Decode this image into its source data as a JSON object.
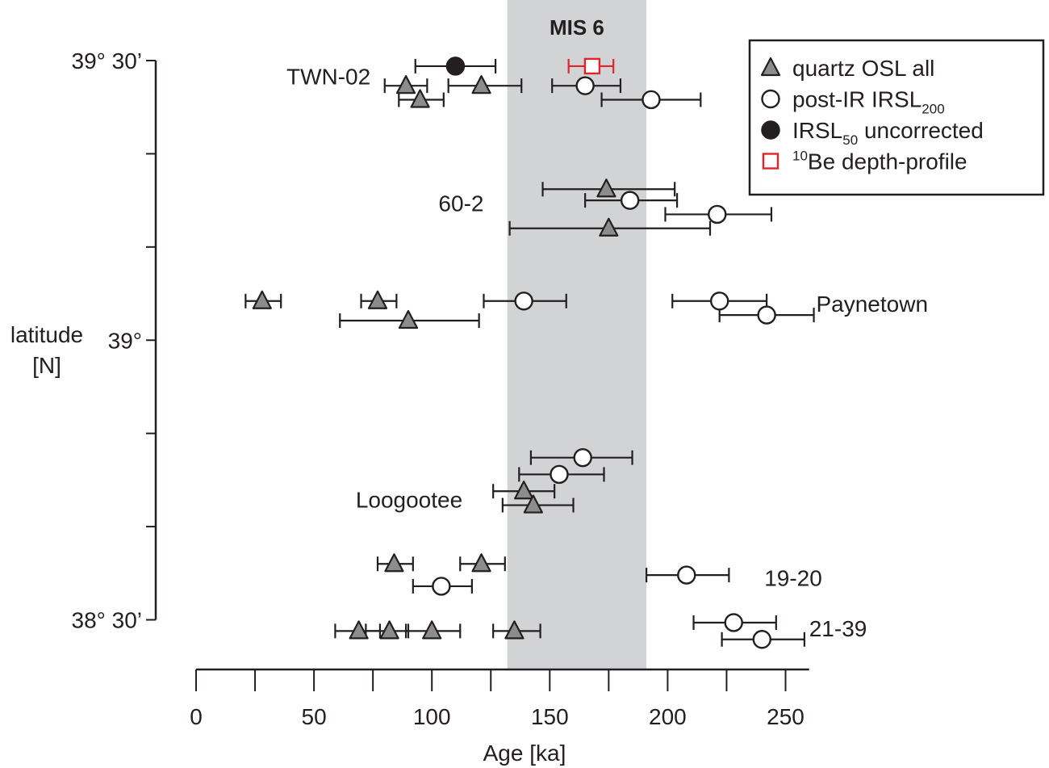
{
  "chart_data": {
    "type": "scatter",
    "title": "",
    "xlabel": "Age [ka]",
    "ylabel": "latitude [N]",
    "xlim": [
      0,
      260
    ],
    "x_ticks": [
      0,
      50,
      100,
      150,
      200,
      250
    ],
    "ylim": [
      38.45,
      39.53
    ],
    "y_ticks": [
      {
        "value": 39.5,
        "label": "39° 30’"
      },
      {
        "value": 39.0,
        "label": "39°"
      },
      {
        "value": 38.5,
        "label": "38° 30’"
      }
    ],
    "shaded_band": {
      "label": "MIS 6",
      "x_start": 132,
      "x_end": 191
    },
    "legend": {
      "position": "top-right",
      "entries": [
        {
          "series": "quartz_osl",
          "text": "quartz OSL all"
        },
        {
          "series": "postir",
          "text": "post-IR IRSL",
          "sub": "200"
        },
        {
          "series": "irsl50",
          "text": "IRSL",
          "sub": "50",
          "suffix": " uncorrected"
        },
        {
          "series": "be10",
          "sup": "10",
          "text": "Be depth-profile"
        }
      ]
    },
    "site_labels": [
      {
        "text": "TWN-02",
        "x": 74,
        "y": 39.472,
        "anchor": "end"
      },
      {
        "text": "60-2",
        "x": 122,
        "y": 39.245,
        "anchor": "end"
      },
      {
        "text": "Paynetown",
        "x": 263,
        "y": 39.065,
        "anchor": "start"
      },
      {
        "text": "Loogootee",
        "x": 113,
        "y": 38.715,
        "anchor": "end"
      },
      {
        "text": "19-20",
        "x": 241,
        "y": 38.575,
        "anchor": "start"
      },
      {
        "text": "21-39",
        "x": 260,
        "y": 38.485,
        "anchor": "start"
      }
    ],
    "series": [
      {
        "name": "quartz OSL all",
        "marker": "triangle",
        "color": "#8c8c8c",
        "points": [
          {
            "x": 89,
            "y": 39.455,
            "xerr": [
              80,
              98
            ]
          },
          {
            "x": 121,
            "y": 39.455,
            "xerr": [
              107,
              138
            ]
          },
          {
            "x": 95,
            "y": 39.43,
            "xerr": [
              86,
              105
            ]
          },
          {
            "x": 174,
            "y": 39.27,
            "xerr": [
              147,
              203
            ]
          },
          {
            "x": 175,
            "y": 39.2,
            "xerr": [
              133,
              218
            ]
          },
          {
            "x": 28,
            "y": 39.07,
            "xerr": [
              21,
              36
            ]
          },
          {
            "x": 77,
            "y": 39.07,
            "xerr": [
              70,
              85
            ]
          },
          {
            "x": 90,
            "y": 39.035,
            "xerr": [
              61,
              120
            ]
          },
          {
            "x": 139,
            "y": 38.73,
            "xerr": [
              126,
              152
            ]
          },
          {
            "x": 143,
            "y": 38.705,
            "xerr": [
              130,
              160
            ]
          },
          {
            "x": 84,
            "y": 38.6,
            "xerr": [
              77,
              92
            ]
          },
          {
            "x": 121,
            "y": 38.6,
            "xerr": [
              112,
              131
            ]
          },
          {
            "x": 69,
            "y": 38.48,
            "xerr": [
              59,
              78
            ]
          },
          {
            "x": 82,
            "y": 38.48,
            "xerr": [
              72,
              90
            ]
          },
          {
            "x": 100,
            "y": 38.48,
            "xerr": [
              89,
              112
            ]
          },
          {
            "x": 135,
            "y": 38.48,
            "xerr": [
              126,
              146
            ]
          }
        ]
      },
      {
        "name": "post-IR IRSL200",
        "marker": "circle-open",
        "color": "#ffffff",
        "points": [
          {
            "x": 165,
            "y": 39.455,
            "xerr": [
              151,
              180
            ]
          },
          {
            "x": 193,
            "y": 39.43,
            "xerr": [
              172,
              214
            ]
          },
          {
            "x": 184,
            "y": 39.25,
            "xerr": [
              165,
              204
            ]
          },
          {
            "x": 221,
            "y": 39.225,
            "xerr": [
              199,
              244
            ]
          },
          {
            "x": 139,
            "y": 39.07,
            "xerr": [
              122,
              157
            ]
          },
          {
            "x": 222,
            "y": 39.07,
            "xerr": [
              202,
              242
            ]
          },
          {
            "x": 242,
            "y": 39.045,
            "xerr": [
              222,
              262
            ]
          },
          {
            "x": 164,
            "y": 38.79,
            "xerr": [
              142,
              185
            ]
          },
          {
            "x": 154,
            "y": 38.76,
            "xerr": [
              137,
              173
            ]
          },
          {
            "x": 208,
            "y": 38.58,
            "xerr": [
              191,
              226
            ]
          },
          {
            "x": 104,
            "y": 38.56,
            "xerr": [
              92,
              117
            ]
          },
          {
            "x": 228,
            "y": 38.495,
            "xerr": [
              211,
              246
            ]
          },
          {
            "x": 240,
            "y": 38.465,
            "xerr": [
              223,
              258
            ]
          }
        ]
      },
      {
        "name": "IRSL50 uncorrected",
        "marker": "circle-filled",
        "color": "#231f20",
        "points": [
          {
            "x": 110,
            "y": 39.49,
            "xerr": [
              93,
              127
            ]
          }
        ]
      },
      {
        "name": "10Be depth-profile",
        "marker": "square-open",
        "color": "#e0242b",
        "points": [
          {
            "x": 168,
            "y": 39.49,
            "xerr": [
              158,
              177
            ]
          }
        ]
      }
    ]
  }
}
